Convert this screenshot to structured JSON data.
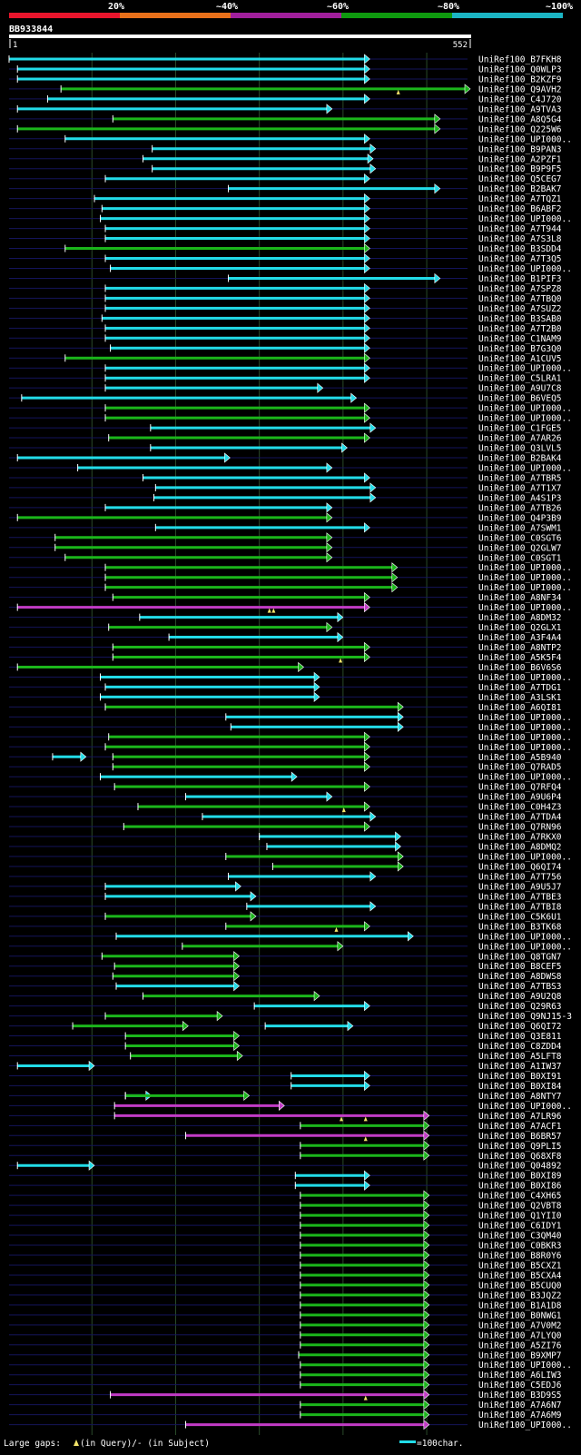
{
  "header": {
    "query_name": "BB933844",
    "query_start": "1",
    "query_end": "552",
    "identity_legend": [
      {
        "label": "20%",
        "color": "#e8152c"
      },
      {
        "label": "~40%",
        "color": "#e8701a"
      },
      {
        "label": "~60%",
        "color": "#a11f9c"
      },
      {
        "label": "~80%",
        "color": "#0f9a0f"
      },
      {
        "label": "~100%",
        "color": "#1bb5c4"
      }
    ]
  },
  "footer": {
    "gaps_label": "Large gaps: ",
    "gap_query_text": "(in Query)/- (in Subject)",
    "scale_label": "=100char."
  },
  "colors": {
    "cyan": "#22dce8",
    "green": "#1bb61b",
    "magenta": "#c23bc6",
    "grid": "#2a4a2a",
    "row_line": "#14145a",
    "gap_marker": "#f2e46a"
  },
  "chart_data": {
    "type": "alignment-overview",
    "query_length": 552,
    "x_unit": "query position (char)",
    "gridlines_at": [
      100,
      200,
      300,
      400,
      500
    ],
    "hits": [
      {
        "label": "UniRef100_B7FKH8",
        "start": 1,
        "end": 432,
        "color": "cyan"
      },
      {
        "label": "UniRef100_Q0WLP3",
        "start": 11,
        "end": 432,
        "color": "cyan"
      },
      {
        "label": "UniRef100_B2KZF9",
        "start": 11,
        "end": 432,
        "color": "cyan"
      },
      {
        "label": "UniRef100_Q9AVH2",
        "start": 63,
        "end": 552,
        "color": "green",
        "gaps": [
          466
        ]
      },
      {
        "label": "UniRef100_C4J720",
        "start": 47,
        "end": 432,
        "color": "cyan"
      },
      {
        "label": "UniRef100_A9TVA3",
        "start": 11,
        "end": 387,
        "color": "cyan"
      },
      {
        "label": "UniRef100_A8Q5G4",
        "start": 125,
        "end": 516,
        "color": "green"
      },
      {
        "label": "UniRef100_Q225W6",
        "start": 11,
        "end": 516,
        "color": "green"
      },
      {
        "label": "UniRef100_UPI000..",
        "start": 68,
        "end": 432,
        "color": "cyan"
      },
      {
        "label": "UniRef100_B9PAN3",
        "start": 172,
        "end": 439,
        "color": "cyan"
      },
      {
        "label": "UniRef100_A2PZF1",
        "start": 161,
        "end": 436,
        "color": "cyan"
      },
      {
        "label": "UniRef100_B9P9F5",
        "start": 172,
        "end": 439,
        "color": "cyan"
      },
      {
        "label": "UniRef100_Q5CEG7",
        "start": 116,
        "end": 432,
        "color": "cyan"
      },
      {
        "label": "UniRef100_B2BAK7",
        "start": 263,
        "end": 516,
        "color": "cyan"
      },
      {
        "label": "UniRef100_A7TQZ1",
        "start": 103,
        "end": 432,
        "color": "cyan"
      },
      {
        "label": "UniRef100_B6ABF2",
        "start": 112,
        "end": 432,
        "color": "cyan"
      },
      {
        "label": "UniRef100_UPI000..",
        "start": 110,
        "end": 432,
        "color": "cyan"
      },
      {
        "label": "UniRef100_A7T944",
        "start": 116,
        "end": 432,
        "color": "cyan"
      },
      {
        "label": "UniRef100_A7S3L8",
        "start": 116,
        "end": 432,
        "color": "cyan"
      },
      {
        "label": "UniRef100_B3SDD4",
        "start": 68,
        "end": 432,
        "color": "green"
      },
      {
        "label": "UniRef100_A7T3Q5",
        "start": 116,
        "end": 432,
        "color": "cyan"
      },
      {
        "label": "UniRef100_UPI000..",
        "start": 122,
        "end": 432,
        "color": "cyan"
      },
      {
        "label": "UniRef100_B1PIF3",
        "start": 263,
        "end": 516,
        "color": "cyan"
      },
      {
        "label": "UniRef100_A7SPZ8",
        "start": 116,
        "end": 432,
        "color": "cyan"
      },
      {
        "label": "UniRef100_A7TBQ0",
        "start": 116,
        "end": 432,
        "color": "cyan"
      },
      {
        "label": "UniRef100_A7SUZ2",
        "start": 116,
        "end": 432,
        "color": "cyan"
      },
      {
        "label": "UniRef100_B3SAB0",
        "start": 112,
        "end": 432,
        "color": "cyan"
      },
      {
        "label": "UniRef100_A7T2B0",
        "start": 116,
        "end": 432,
        "color": "cyan"
      },
      {
        "label": "UniRef100_C1NAM9",
        "start": 116,
        "end": 432,
        "color": "cyan"
      },
      {
        "label": "UniRef100_B7G3Q0",
        "start": 122,
        "end": 432,
        "color": "cyan"
      },
      {
        "label": "UniRef100_A1CUV5",
        "start": 68,
        "end": 432,
        "color": "green"
      },
      {
        "label": "UniRef100_UPI000..",
        "start": 116,
        "end": 432,
        "color": "cyan"
      },
      {
        "label": "UniRef100_C5LRA1",
        "start": 116,
        "end": 432,
        "color": "cyan"
      },
      {
        "label": "UniRef100_A9U7C8",
        "start": 116,
        "end": 376,
        "color": "cyan"
      },
      {
        "label": "UniRef100_B6VEQ5",
        "start": 16,
        "end": 416,
        "color": "cyan"
      },
      {
        "label": "UniRef100_UPI000..",
        "start": 116,
        "end": 432,
        "color": "green"
      },
      {
        "label": "UniRef100_UPI000..",
        "start": 116,
        "end": 432,
        "color": "green"
      },
      {
        "label": "UniRef100_C1FGE5",
        "start": 170,
        "end": 439,
        "color": "cyan"
      },
      {
        "label": "UniRef100_A7AR26",
        "start": 120,
        "end": 432,
        "color": "green"
      },
      {
        "label": "UniRef100_Q3LVL5",
        "start": 170,
        "end": 405,
        "color": "cyan"
      },
      {
        "label": "UniRef100_B2BAK4",
        "start": 11,
        "end": 265,
        "color": "cyan"
      },
      {
        "label": "UniRef100_UPI000..",
        "start": 83,
        "end": 387,
        "color": "cyan"
      },
      {
        "label": "UniRef100_A7TBR5",
        "start": 161,
        "end": 432,
        "color": "cyan"
      },
      {
        "label": "UniRef100_A7T1X7",
        "start": 176,
        "end": 439,
        "color": "cyan"
      },
      {
        "label": "UniRef100_A4S1P3",
        "start": 174,
        "end": 439,
        "color": "cyan"
      },
      {
        "label": "UniRef100_A7TB26",
        "start": 116,
        "end": 387,
        "color": "cyan"
      },
      {
        "label": "UniRef100_Q4P3B9",
        "start": 11,
        "end": 387,
        "color": "green"
      },
      {
        "label": "UniRef100_A7SWM1",
        "start": 176,
        "end": 432,
        "color": "cyan"
      },
      {
        "label": "UniRef100_C0SGT6",
        "start": 56,
        "end": 387,
        "color": "green"
      },
      {
        "label": "UniRef100_Q2GLW7",
        "start": 56,
        "end": 387,
        "color": "green"
      },
      {
        "label": "UniRef100_C0SGT1",
        "start": 68,
        "end": 387,
        "color": "green"
      },
      {
        "label": "UniRef100_UPI000..",
        "start": 116,
        "end": 465,
        "color": "green"
      },
      {
        "label": "UniRef100_UPI000..",
        "start": 116,
        "end": 465,
        "color": "green"
      },
      {
        "label": "UniRef100_UPI000..",
        "start": 116,
        "end": 465,
        "color": "green"
      },
      {
        "label": "UniRef100_A8NF34",
        "start": 125,
        "end": 432,
        "color": "green"
      },
      {
        "label": "UniRef100_UPI000..",
        "start": 11,
        "end": 432,
        "color": "magenta",
        "gaps": [
          312,
          317
        ]
      },
      {
        "label": "UniRef100_A8DM32",
        "start": 157,
        "end": 400,
        "color": "cyan"
      },
      {
        "label": "UniRef100_Q2GLX1",
        "start": 120,
        "end": 387,
        "color": "green"
      },
      {
        "label": "UniRef100_A3F4A4",
        "start": 192,
        "end": 400,
        "color": "cyan"
      },
      {
        "label": "UniRef100_A8NTP2",
        "start": 125,
        "end": 432,
        "color": "green"
      },
      {
        "label": "UniRef100_A5K5F4",
        "start": 125,
        "end": 432,
        "color": "green",
        "gaps": [
          397
        ]
      },
      {
        "label": "UniRef100_B6V6S6",
        "start": 11,
        "end": 353,
        "color": "green"
      },
      {
        "label": "UniRef100_UPI000..",
        "start": 110,
        "end": 372,
        "color": "cyan"
      },
      {
        "label": "UniRef100_A7TDG1",
        "start": 116,
        "end": 372,
        "color": "cyan"
      },
      {
        "label": "UniRef100_A3LSK1",
        "start": 110,
        "end": 372,
        "color": "cyan"
      },
      {
        "label": "UniRef100_A6QI81",
        "start": 116,
        "end": 472,
        "color": "green"
      },
      {
        "label": "UniRef100_UPI000..",
        "start": 260,
        "end": 472,
        "color": "cyan"
      },
      {
        "label": "UniRef100_UPI000..",
        "start": 266,
        "end": 472,
        "color": "cyan"
      },
      {
        "label": "UniRef100_UPI000..",
        "start": 120,
        "end": 432,
        "color": "green"
      },
      {
        "label": "UniRef100_UPI000..",
        "start": 116,
        "end": 432,
        "color": "green"
      },
      {
        "label": "UniRef100_A5B940",
        "start": 53,
        "end": 93,
        "color": "cyan",
        "extra": {
          "start": 125,
          "end": 432,
          "color": "green"
        }
      },
      {
        "label": "UniRef100_Q7RAD5",
        "start": 125,
        "end": 432,
        "color": "green"
      },
      {
        "label": "UniRef100_UPI000..",
        "start": 110,
        "end": 345,
        "color": "cyan"
      },
      {
        "label": "UniRef100_Q7RFQ4",
        "start": 127,
        "end": 432,
        "color": "green"
      },
      {
        "label": "UniRef100_A9U6P4",
        "start": 212,
        "end": 387,
        "color": "cyan"
      },
      {
        "label": "UniRef100_C0H4Z3",
        "start": 155,
        "end": 432,
        "color": "green",
        "gaps": [
          401
        ]
      },
      {
        "label": "UniRef100_A7TDA4",
        "start": 232,
        "end": 439,
        "color": "cyan"
      },
      {
        "label": "UniRef100_Q7RN96",
        "start": 138,
        "end": 432,
        "color": "green"
      },
      {
        "label": "UniRef100_A7RKX0",
        "start": 300,
        "end": 469,
        "color": "cyan"
      },
      {
        "label": "UniRef100_A8DMQ2",
        "start": 309,
        "end": 469,
        "color": "cyan"
      },
      {
        "label": "UniRef100_UPI000..",
        "start": 260,
        "end": 472,
        "color": "green"
      },
      {
        "label": "UniRef100_Q6QI74",
        "start": 316,
        "end": 472,
        "color": "green"
      },
      {
        "label": "UniRef100_A7T756",
        "start": 263,
        "end": 439,
        "color": "cyan"
      },
      {
        "label": "UniRef100_A9U5J7",
        "start": 116,
        "end": 278,
        "color": "cyan"
      },
      {
        "label": "UniRef100_A7TBE3",
        "start": 116,
        "end": 296,
        "color": "cyan"
      },
      {
        "label": "UniRef100_A7TBI8",
        "start": 285,
        "end": 439,
        "color": "cyan"
      },
      {
        "label": "UniRef100_C5K6U1",
        "start": 116,
        "end": 296,
        "color": "green"
      },
      {
        "label": "UniRef100_B3TK68",
        "start": 260,
        "end": 432,
        "color": "green",
        "gaps": [
          392
        ]
      },
      {
        "label": "UniRef100_UPI000..",
        "start": 129,
        "end": 484,
        "color": "cyan"
      },
      {
        "label": "UniRef100_UPI000..",
        "start": 208,
        "end": 400,
        "color": "green"
      },
      {
        "label": "UniRef100_Q8TGN7",
        "start": 112,
        "end": 276,
        "color": "green"
      },
      {
        "label": "UniRef100_B8CEF5",
        "start": 127,
        "end": 276,
        "color": "green"
      },
      {
        "label": "UniRef100_A8DWS8",
        "start": 125,
        "end": 276,
        "color": "green"
      },
      {
        "label": "UniRef100_A7TBS3",
        "start": 129,
        "end": 276,
        "color": "cyan"
      },
      {
        "label": "UniRef100_A9U2Q8",
        "start": 161,
        "end": 372,
        "color": "green"
      },
      {
        "label": "UniRef100_Q29R63",
        "start": 294,
        "end": 432,
        "color": "cyan"
      },
      {
        "label": "UniRef100_Q9NJ15-3",
        "start": 116,
        "end": 256,
        "color": "green"
      },
      {
        "label": "UniRef100_Q6QI72",
        "start": 77,
        "end": 215,
        "color": "green",
        "extra": {
          "start": 307,
          "end": 412,
          "color": "cyan"
        }
      },
      {
        "label": "UniRef100_Q3E811",
        "start": 140,
        "end": 276,
        "color": "green"
      },
      {
        "label": "UniRef100_C8ZDD4",
        "start": 140,
        "end": 276,
        "color": "green"
      },
      {
        "label": "UniRef100_A5LFT8",
        "start": 146,
        "end": 280,
        "color": "green"
      },
      {
        "label": "UniRef100_A1IW37",
        "start": 11,
        "end": 103,
        "color": "cyan"
      },
      {
        "label": "UniRef100_B0XI91",
        "start": 338,
        "end": 432,
        "color": "cyan"
      },
      {
        "label": "UniRef100_B0XI84",
        "start": 338,
        "end": 432,
        "color": "cyan"
      },
      {
        "label": "UniRef100_A8NTY7",
        "start": 140,
        "end": 288,
        "color": "green",
        "extra": {
          "start": 140,
          "end": 171,
          "color": "cyan"
        }
      },
      {
        "label": "UniRef100_UPI000..",
        "start": 127,
        "end": 330,
        "color": "magenta"
      },
      {
        "label": "UniRef100_A7LR96",
        "start": 127,
        "end": 503,
        "color": "magenta",
        "gaps": [
          398,
          427
        ]
      },
      {
        "label": "UniRef100_A7ACF1",
        "start": 349,
        "end": 503,
        "color": "green"
      },
      {
        "label": "UniRef100_B6BR57",
        "start": 212,
        "end": 503,
        "color": "magenta",
        "gaps": [
          427
        ]
      },
      {
        "label": "UniRef100_Q9PLI5",
        "start": 349,
        "end": 503,
        "color": "green"
      },
      {
        "label": "UniRef100_Q68XF8",
        "start": 349,
        "end": 503,
        "color": "green"
      },
      {
        "label": "UniRef100_Q04892",
        "start": 11,
        "end": 103,
        "color": "cyan"
      },
      {
        "label": "UniRef100_B0XI89",
        "start": 343,
        "end": 432,
        "color": "cyan"
      },
      {
        "label": "UniRef100_B0XI86",
        "start": 343,
        "end": 432,
        "color": "cyan"
      },
      {
        "label": "UniRef100_C4XH65",
        "start": 349,
        "end": 503,
        "color": "green"
      },
      {
        "label": "UniRef100_Q2VBT8",
        "start": 349,
        "end": 503,
        "color": "green"
      },
      {
        "label": "UniRef100_Q1YII0",
        "start": 349,
        "end": 503,
        "color": "green"
      },
      {
        "label": "UniRef100_C6IDY1",
        "start": 349,
        "end": 503,
        "color": "green"
      },
      {
        "label": "UniRef100_C3QM40",
        "start": 349,
        "end": 503,
        "color": "green"
      },
      {
        "label": "UniRef100_C0BKR3",
        "start": 349,
        "end": 503,
        "color": "green"
      },
      {
        "label": "UniRef100_B8R0Y6",
        "start": 349,
        "end": 503,
        "color": "green"
      },
      {
        "label": "UniRef100_B5CXZ1",
        "start": 349,
        "end": 503,
        "color": "green"
      },
      {
        "label": "UniRef100_B5CXA4",
        "start": 349,
        "end": 503,
        "color": "green"
      },
      {
        "label": "UniRef100_B5CUQ0",
        "start": 349,
        "end": 503,
        "color": "green"
      },
      {
        "label": "UniRef100_B3JQZ2",
        "start": 349,
        "end": 503,
        "color": "green"
      },
      {
        "label": "UniRef100_B1A1D8",
        "start": 349,
        "end": 503,
        "color": "green"
      },
      {
        "label": "UniRef100_B0NWG1",
        "start": 349,
        "end": 503,
        "color": "green"
      },
      {
        "label": "UniRef100_A7V0M2",
        "start": 349,
        "end": 503,
        "color": "green"
      },
      {
        "label": "UniRef100_A7LYQ0",
        "start": 349,
        "end": 503,
        "color": "green"
      },
      {
        "label": "UniRef100_A5ZI76",
        "start": 349,
        "end": 503,
        "color": "green"
      },
      {
        "label": "UniRef100_B9XMP7",
        "start": 347,
        "end": 503,
        "color": "green"
      },
      {
        "label": "UniRef100_UPI000..",
        "start": 349,
        "end": 503,
        "color": "green"
      },
      {
        "label": "UniRef100_A6LIW3",
        "start": 349,
        "end": 503,
        "color": "green"
      },
      {
        "label": "UniRef100_C5EDJ6",
        "start": 349,
        "end": 503,
        "color": "green"
      },
      {
        "label": "UniRef100_B3D9S5",
        "start": 122,
        "end": 503,
        "color": "magenta",
        "gaps": [
          427
        ]
      },
      {
        "label": "UniRef100_A7A6N7",
        "start": 349,
        "end": 503,
        "color": "green"
      },
      {
        "label": "UniRef100_A7A6M9",
        "start": 349,
        "end": 503,
        "color": "green"
      },
      {
        "label": "UniRef100_UPI000..",
        "start": 212,
        "end": 503,
        "color": "magenta"
      }
    ]
  }
}
